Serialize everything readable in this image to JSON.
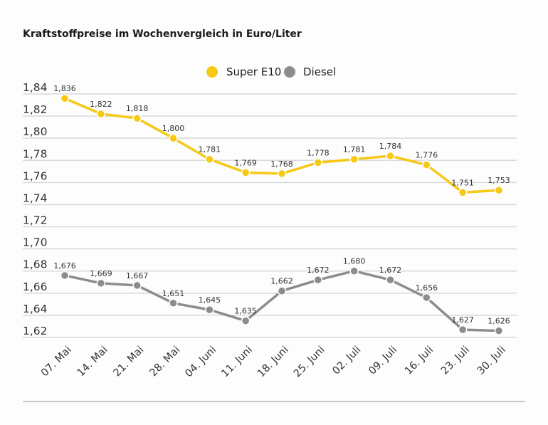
{
  "chart_data": {
    "type": "line",
    "title": "Kraftstoffpreise im Wochenvergleich in Euro/Liter",
    "xlabel": "",
    "ylabel": "",
    "categories": [
      "07. Mai",
      "14. Mai",
      "21. Mai",
      "28. Mai",
      "04. Juni",
      "11. Juni",
      "18. Juni",
      "25. Juni",
      "02. Juli",
      "09. Juli",
      "16. Juli",
      "23. Juli",
      "30. Juli"
    ],
    "ylim": [
      1.62,
      1.84
    ],
    "yticks": [
      "1,84",
      "1,82",
      "1,80",
      "1,78",
      "1,76",
      "1,74",
      "1,72",
      "1,70",
      "1,68",
      "1,66",
      "1,64",
      "1,62"
    ],
    "ytick_values": [
      1.84,
      1.82,
      1.8,
      1.78,
      1.76,
      1.74,
      1.72,
      1.7,
      1.68,
      1.66,
      1.64,
      1.62
    ],
    "grid": true,
    "legend_position": "top-center",
    "series": [
      {
        "name": "Super E10",
        "color": "#f5c915",
        "values": [
          1.836,
          1.822,
          1.818,
          1.8,
          1.781,
          1.769,
          1.768,
          1.778,
          1.781,
          1.784,
          1.776,
          1.751,
          1.753
        ],
        "labels": [
          "1,836",
          "1,822",
          "1,818",
          "1,800",
          "1,781",
          "1,769",
          "1,768",
          "1,778",
          "1,781",
          "1,784",
          "1,776",
          "1,751",
          "1,753"
        ]
      },
      {
        "name": "Diesel",
        "color": "#8c8c8c",
        "values": [
          1.676,
          1.669,
          1.667,
          1.651,
          1.645,
          1.635,
          1.662,
          1.672,
          1.68,
          1.672,
          1.656,
          1.627,
          1.626
        ],
        "labels": [
          "1,676",
          "1,669",
          "1,667",
          "1,651",
          "1,645",
          "1,635",
          "1,662",
          "1,672",
          "1,680",
          "1,672",
          "1,656",
          "1,627",
          "1,626"
        ]
      }
    ]
  }
}
